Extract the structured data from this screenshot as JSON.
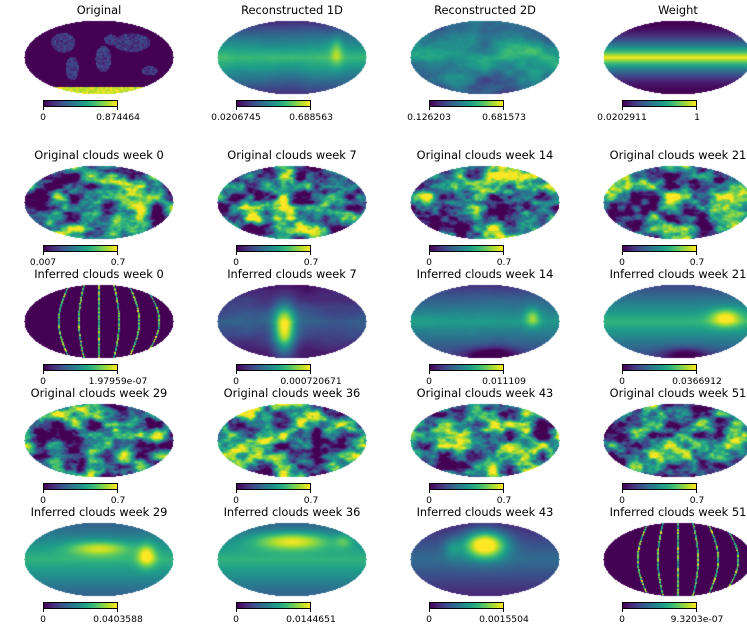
{
  "colormap": [
    "#440154",
    "#482777",
    "#3e4a89",
    "#31688e",
    "#26828e",
    "#1f9e89",
    "#35b779",
    "#6ece58",
    "#b5de2b",
    "#fde725"
  ],
  "panels": [
    {
      "name": "original",
      "title": "Original",
      "cmin": "0",
      "cmax": "0.874464",
      "pattern": "landmask"
    },
    {
      "name": "reconstructed-1d",
      "title": "Reconstructed 1D",
      "cmin": "0.0206745",
      "cmax": "0.688563",
      "pattern": "recon1d"
    },
    {
      "name": "reconstructed-2d",
      "title": "Reconstructed 2D",
      "cmin": "0.126203",
      "cmax": "0.681573",
      "pattern": "recon2d"
    },
    {
      "name": "weight",
      "title": "Weight",
      "cmin": "0.0202911",
      "cmax": "1",
      "pattern": "weight"
    },
    {
      "name": "original-clouds-week-0",
      "title": "Original clouds week 0",
      "cmin": "0.007",
      "cmax": "0.7",
      "pattern": "clouds"
    },
    {
      "name": "original-clouds-week-7",
      "title": "Original clouds week 7",
      "cmin": "0",
      "cmax": "0.7",
      "pattern": "clouds"
    },
    {
      "name": "original-clouds-week-14",
      "title": "Original clouds week 14",
      "cmin": "0",
      "cmax": "0.7",
      "pattern": "clouds"
    },
    {
      "name": "original-clouds-week-21",
      "title": "Original clouds week 21",
      "cmin": "0",
      "cmax": "0.7",
      "pattern": "clouds"
    },
    {
      "name": "inferred-clouds-week-0",
      "title": "Inferred clouds week 0",
      "cmin": "0",
      "cmax": "1.97959e-07",
      "pattern": "arcs"
    },
    {
      "name": "inferred-clouds-week-7",
      "title": "Inferred clouds week 7",
      "cmin": "0",
      "cmax": "0.000720671",
      "pattern": "inferred7"
    },
    {
      "name": "inferred-clouds-week-14",
      "title": "Inferred clouds week 14",
      "cmin": "0",
      "cmax": "0.011109",
      "pattern": "inferred14"
    },
    {
      "name": "inferred-clouds-week-21",
      "title": "Inferred clouds week 21",
      "cmin": "0",
      "cmax": "0.0366912",
      "pattern": "inferred21"
    },
    {
      "name": "original-clouds-week-29",
      "title": "Original clouds week 29",
      "cmin": "0",
      "cmax": "0.7",
      "pattern": "clouds"
    },
    {
      "name": "original-clouds-week-36",
      "title": "Original clouds week 36",
      "cmin": "0",
      "cmax": "0.7",
      "pattern": "clouds"
    },
    {
      "name": "original-clouds-week-43",
      "title": "Original clouds week 43",
      "cmin": "0",
      "cmax": "0.7",
      "pattern": "clouds"
    },
    {
      "name": "original-clouds-week-51",
      "title": "Original clouds week 51",
      "cmin": "0",
      "cmax": "0.7",
      "pattern": "clouds"
    },
    {
      "name": "inferred-clouds-week-29",
      "title": "Inferred clouds week 29",
      "cmin": "0",
      "cmax": "0.0403588",
      "pattern": "inferred29"
    },
    {
      "name": "inferred-clouds-week-36",
      "title": "Inferred clouds week 36",
      "cmin": "0",
      "cmax": "0.0144651",
      "pattern": "inferred36"
    },
    {
      "name": "inferred-clouds-week-43",
      "title": "Inferred clouds week 43",
      "cmin": "0",
      "cmax": "0.0015504",
      "pattern": "inferred43"
    },
    {
      "name": "inferred-clouds-week-51",
      "title": "Inferred clouds week 51",
      "cmin": "0",
      "cmax": "9.3203e-07",
      "pattern": "arcs"
    }
  ]
}
